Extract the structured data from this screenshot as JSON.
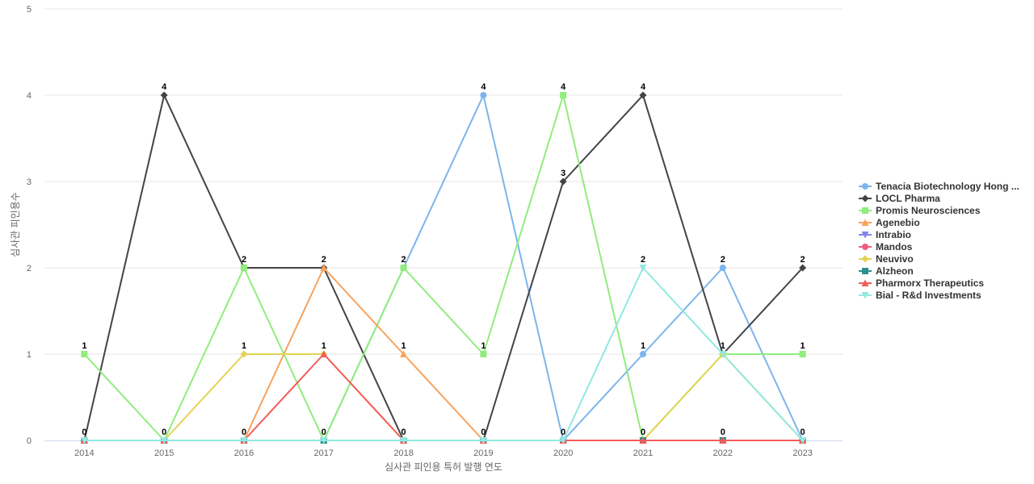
{
  "chart_data": {
    "type": "line",
    "title": "",
    "xlabel": "심사관 피인용 특허 발행 연도",
    "ylabel": "심사관 피인용수",
    "ylim": [
      0,
      5
    ],
    "yticks": [
      0,
      1,
      2,
      3,
      4,
      5
    ],
    "grid": true,
    "legend_position": "right",
    "categories": [
      "2014",
      "2015",
      "2016",
      "2017",
      "2018",
      "2019",
      "2020",
      "2021",
      "2022",
      "2023"
    ],
    "series": [
      {
        "name": "Tenacia Biotechnology Hong ...",
        "color": "#7cb5ec",
        "marker": "circle",
        "values": [
          0,
          0,
          0,
          0,
          2,
          4,
          0,
          1,
          2,
          0
        ]
      },
      {
        "name": "LOCL Pharma",
        "color": "#434348",
        "marker": "diamond",
        "values": [
          0,
          4,
          2,
          2,
          0,
          0,
          3,
          4,
          1,
          2
        ]
      },
      {
        "name": "Promis Neurosciences",
        "color": "#90ed7d",
        "marker": "square",
        "values": [
          1,
          0,
          2,
          0,
          2,
          1,
          4,
          0,
          1,
          1
        ]
      },
      {
        "name": "Agenebio",
        "color": "#f7a35c",
        "marker": "triangle",
        "values": [
          0,
          0,
          0,
          2,
          1,
          0,
          0,
          0,
          0,
          0
        ]
      },
      {
        "name": "Intrabio",
        "color": "#8085e9",
        "marker": "triangle-down",
        "values": [
          0,
          0,
          0,
          0,
          0,
          0,
          0,
          0,
          0,
          0
        ]
      },
      {
        "name": "Mandos",
        "color": "#f15c80",
        "marker": "circle",
        "values": [
          0,
          0,
          0,
          0,
          0,
          0,
          0,
          0,
          0,
          0
        ]
      },
      {
        "name": "Neuvivo",
        "color": "#e4d354",
        "marker": "diamond",
        "values": [
          0,
          0,
          1,
          1,
          0,
          0,
          0,
          0,
          1,
          0
        ]
      },
      {
        "name": "Alzheon",
        "color": "#2b908f",
        "marker": "square",
        "values": [
          0,
          0,
          0,
          0,
          0,
          0,
          0,
          0,
          0,
          0
        ]
      },
      {
        "name": "Pharmorx Therapeutics",
        "color": "#f45b5b",
        "marker": "triangle",
        "values": [
          0,
          0,
          0,
          1,
          0,
          0,
          0,
          0,
          0,
          0
        ]
      },
      {
        "name": "Bial - R&d Investments",
        "color": "#91e8e1",
        "marker": "triangle-down",
        "values": [
          0,
          0,
          0,
          0,
          0,
          0,
          0,
          2,
          1,
          0
        ]
      }
    ],
    "data_labels": [
      {
        "category": "2014",
        "value": 1,
        "text": "1"
      },
      {
        "category": "2014",
        "value": 0,
        "text": "0"
      },
      {
        "category": "2015",
        "value": 4,
        "text": "4"
      },
      {
        "category": "2015",
        "value": 0,
        "text": "0"
      },
      {
        "category": "2016",
        "value": 2,
        "text": "2"
      },
      {
        "category": "2016",
        "value": 1,
        "text": "1"
      },
      {
        "category": "2016",
        "value": 0,
        "text": "0"
      },
      {
        "category": "2017",
        "value": 2,
        "text": "2"
      },
      {
        "category": "2017",
        "value": 1,
        "text": "1"
      },
      {
        "category": "2017",
        "value": 0,
        "text": "0"
      },
      {
        "category": "2018",
        "value": 2,
        "text": "2"
      },
      {
        "category": "2018",
        "value": 1,
        "text": "1"
      },
      {
        "category": "2018",
        "value": 0,
        "text": "0"
      },
      {
        "category": "2019",
        "value": 4,
        "text": "4"
      },
      {
        "category": "2019",
        "value": 1,
        "text": "1"
      },
      {
        "category": "2019",
        "value": 0,
        "text": "0"
      },
      {
        "category": "2020",
        "value": 4,
        "text": "4"
      },
      {
        "category": "2020",
        "value": 3,
        "text": "3"
      },
      {
        "category": "2020",
        "value": 0,
        "text": "0"
      },
      {
        "category": "2021",
        "value": 4,
        "text": "4"
      },
      {
        "category": "2021",
        "value": 2,
        "text": "2"
      },
      {
        "category": "2021",
        "value": 1,
        "text": "1"
      },
      {
        "category": "2021",
        "value": 0,
        "text": "0"
      },
      {
        "category": "2022",
        "value": 2,
        "text": "2"
      },
      {
        "category": "2022",
        "value": 1,
        "text": "1"
      },
      {
        "category": "2022",
        "value": 0,
        "text": "0"
      },
      {
        "category": "2023",
        "value": 2,
        "text": "2"
      },
      {
        "category": "2023",
        "value": 1,
        "text": "1"
      },
      {
        "category": "2023",
        "value": 0,
        "text": "0"
      }
    ]
  }
}
